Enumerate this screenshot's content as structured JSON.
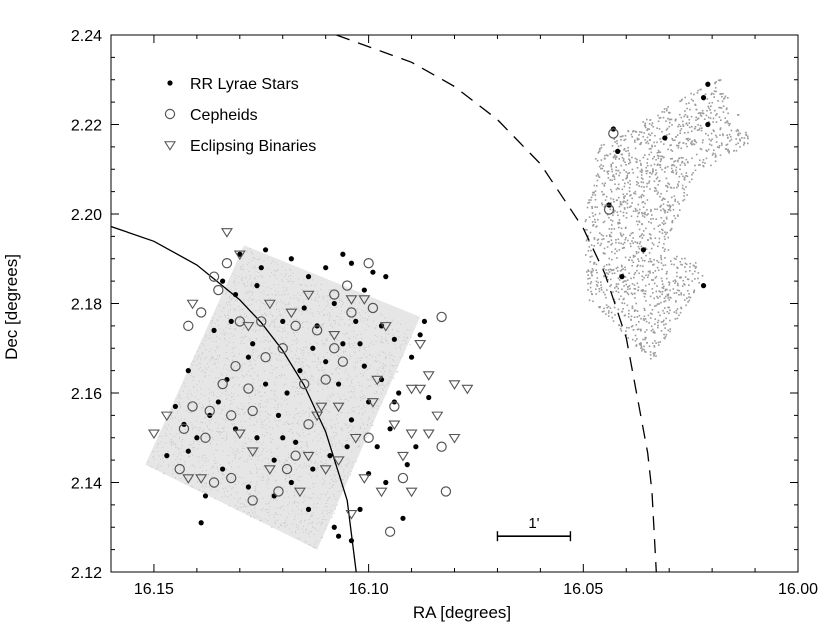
{
  "chart_data": {
    "type": "scatter",
    "title": "",
    "xlabel": "RA [degrees]",
    "ylabel": "Dec [degrees]",
    "xlim": [
      16.16,
      16.0
    ],
    "ylim": [
      2.12,
      2.24
    ],
    "x_reversed": true,
    "x_ticks": [
      "16.15",
      "16.10",
      "16.05",
      "16.00"
    ],
    "y_ticks": [
      "2.12",
      "2.14",
      "2.16",
      "2.18",
      "2.20",
      "2.22",
      "2.24"
    ],
    "legend": {
      "placement": "top-left",
      "entries": [
        "RR Lyrae Stars",
        "Cepheids",
        "Eclipsing Binaries"
      ]
    },
    "scale_bar": {
      "label": "1'",
      "x_start": 16.07,
      "x_end": 16.053,
      "y": 2.128
    },
    "colors": {
      "field": "#9a9a9a",
      "field_light": "#c8c8c8",
      "markers": "#000000",
      "open_markers": "#555555"
    },
    "fields": [
      {
        "name": "left-field",
        "shading": "light",
        "corners": [
          [
            16.152,
            2.144
          ],
          [
            16.129,
            2.193
          ],
          [
            16.088,
            2.177
          ],
          [
            16.112,
            2.125
          ]
        ]
      },
      {
        "name": "right-field",
        "shading": "dark",
        "polygon": [
          [
            16.047,
            2.215
          ],
          [
            16.018,
            2.231
          ],
          [
            16.011,
            2.216
          ],
          [
            16.024,
            2.209
          ],
          [
            16.031,
            2.193
          ],
          [
            16.021,
            2.188
          ],
          [
            16.034,
            2.167
          ],
          [
            16.049,
            2.181
          ],
          [
            16.05,
            2.197
          ]
        ]
      }
    ],
    "curves": [
      {
        "name": "solid-arc",
        "style": "solid",
        "points": [
          [
            16.16,
            2.1972
          ],
          [
            16.15,
            2.1939
          ],
          [
            16.14,
            2.1886
          ],
          [
            16.13,
            2.1808
          ],
          [
            16.125,
            2.1757
          ],
          [
            16.12,
            2.1695
          ],
          [
            16.115,
            2.1617
          ],
          [
            16.11,
            2.1513
          ],
          [
            16.105,
            2.136
          ],
          [
            16.1029,
            2.12
          ]
        ]
      },
      {
        "name": "dashed-arc",
        "style": "dashed",
        "points": [
          [
            16.1075,
            2.24
          ],
          [
            16.09,
            2.2339
          ],
          [
            16.08,
            2.2285
          ],
          [
            16.07,
            2.2211
          ],
          [
            16.06,
            2.2112
          ],
          [
            16.05,
            2.1968
          ],
          [
            16.045,
            2.1867
          ],
          [
            16.04,
            2.1723
          ],
          [
            16.035,
            2.1466
          ],
          [
            16.034,
            2.1378
          ],
          [
            16.033,
            2.12
          ]
        ]
      }
    ],
    "series": [
      {
        "name": "RR Lyrae Stars",
        "marker": "filled-circle",
        "points": [
          [
            16.147,
            2.146
          ],
          [
            16.142,
            2.147
          ],
          [
            16.138,
            2.137
          ],
          [
            16.145,
            2.157
          ],
          [
            16.142,
            2.165
          ],
          [
            16.136,
            2.174
          ],
          [
            16.134,
            2.185
          ],
          [
            16.13,
            2.191
          ],
          [
            16.124,
            2.192
          ],
          [
            16.118,
            2.19
          ],
          [
            16.114,
            2.186
          ],
          [
            16.11,
            2.188
          ],
          [
            16.104,
            2.189
          ],
          [
            16.099,
            2.187
          ],
          [
            16.096,
            2.186
          ],
          [
            16.101,
            2.183
          ],
          [
            16.108,
            2.18
          ],
          [
            16.12,
            2.176
          ],
          [
            16.127,
            2.171
          ],
          [
            16.133,
            2.163
          ],
          [
            16.137,
            2.155
          ],
          [
            16.14,
            2.15
          ],
          [
            16.131,
            2.152
          ],
          [
            16.126,
            2.15
          ],
          [
            16.122,
            2.145
          ],
          [
            16.118,
            2.14
          ],
          [
            16.114,
            2.134
          ],
          [
            16.108,
            2.13
          ],
          [
            16.102,
            2.134
          ],
          [
            16.1,
            2.142
          ],
          [
            16.098,
            2.148
          ],
          [
            16.095,
            2.152
          ],
          [
            16.093,
            2.16
          ],
          [
            16.09,
            2.168
          ],
          [
            16.094,
            2.172
          ],
          [
            16.097,
            2.163
          ],
          [
            16.1,
            2.158
          ],
          [
            16.104,
            2.154
          ],
          [
            16.107,
            2.162
          ],
          [
            16.11,
            2.167
          ],
          [
            16.113,
            2.17
          ],
          [
            16.116,
            2.165
          ],
          [
            16.119,
            2.16
          ],
          [
            16.121,
            2.155
          ],
          [
            16.124,
            2.162
          ],
          [
            16.128,
            2.168
          ],
          [
            16.132,
            2.176
          ],
          [
            16.126,
            2.184
          ],
          [
            16.115,
            2.179
          ],
          [
            16.112,
            2.175
          ],
          [
            16.106,
            2.171
          ],
          [
            16.101,
            2.166
          ],
          [
            16.097,
            2.175
          ],
          [
            16.103,
            2.176
          ],
          [
            16.109,
            2.146
          ],
          [
            16.113,
            2.143
          ],
          [
            16.117,
            2.149
          ],
          [
            16.122,
            2.137
          ],
          [
            16.128,
            2.139
          ],
          [
            16.134,
            2.143
          ],
          [
            16.139,
            2.131
          ],
          [
            16.143,
            2.153
          ],
          [
            16.135,
            2.158
          ],
          [
            16.131,
            2.182
          ],
          [
            16.125,
            2.188
          ],
          [
            16.106,
            2.191
          ],
          [
            16.096,
            2.14
          ],
          [
            16.092,
            2.132
          ],
          [
            16.107,
            2.128
          ],
          [
            16.104,
            2.127
          ],
          [
            16.086,
            2.159
          ],
          [
            16.089,
            2.148
          ],
          [
            16.091,
            2.144
          ],
          [
            16.102,
            2.171
          ],
          [
            16.087,
            2.176
          ],
          [
            16.088,
            2.173
          ],
          [
            16.12,
            2.15
          ],
          [
            16.105,
            2.148
          ],
          [
            16.094,
            2.158
          ],
          [
            16.043,
            2.219
          ],
          [
            16.021,
            2.229
          ],
          [
            16.022,
            2.226
          ],
          [
            16.021,
            2.22
          ],
          [
            16.031,
            2.217
          ],
          [
            16.042,
            2.214
          ],
          [
            16.044,
            2.202
          ],
          [
            16.036,
            2.192
          ],
          [
            16.041,
            2.186
          ],
          [
            16.022,
            2.184
          ]
        ]
      },
      {
        "name": "Cepheids",
        "marker": "open-circle",
        "points": [
          [
            16.136,
            2.186
          ],
          [
            16.133,
            2.189
          ],
          [
            16.135,
            2.183
          ],
          [
            16.139,
            2.178
          ],
          [
            16.142,
            2.175
          ],
          [
            16.13,
            2.176
          ],
          [
            16.125,
            2.176
          ],
          [
            16.12,
            2.17
          ],
          [
            16.117,
            2.175
          ],
          [
            16.112,
            2.174
          ],
          [
            16.108,
            2.17
          ],
          [
            16.105,
            2.184
          ],
          [
            16.108,
            2.182
          ],
          [
            16.104,
            2.178
          ],
          [
            16.1,
            2.189
          ],
          [
            16.099,
            2.179
          ],
          [
            16.11,
            2.163
          ],
          [
            16.115,
            2.162
          ],
          [
            16.124,
            2.168
          ],
          [
            16.131,
            2.166
          ],
          [
            16.134,
            2.162
          ],
          [
            16.128,
            2.161
          ],
          [
            16.141,
            2.157
          ],
          [
            16.137,
            2.156
          ],
          [
            16.132,
            2.155
          ],
          [
            16.127,
            2.156
          ],
          [
            16.143,
            2.152
          ],
          [
            16.138,
            2.15
          ],
          [
            16.117,
            2.146
          ],
          [
            16.119,
            2.143
          ],
          [
            16.121,
            2.138
          ],
          [
            16.127,
            2.136
          ],
          [
            16.132,
            2.141
          ],
          [
            16.136,
            2.14
          ],
          [
            16.144,
            2.143
          ],
          [
            16.114,
            2.153
          ],
          [
            16.106,
            2.167
          ],
          [
            16.094,
            2.157
          ],
          [
            16.092,
            2.141
          ],
          [
            16.083,
            2.177
          ],
          [
            16.1,
            2.15
          ],
          [
            16.095,
            2.129
          ],
          [
            16.082,
            2.138
          ],
          [
            16.083,
            2.148
          ],
          [
            16.043,
            2.218
          ],
          [
            16.044,
            2.201
          ]
        ]
      },
      {
        "name": "Eclipsing Binaries",
        "marker": "open-triangle-down",
        "points": [
          [
            16.15,
            2.151
          ],
          [
            16.147,
            2.155
          ],
          [
            16.142,
            2.141
          ],
          [
            16.139,
            2.141
          ],
          [
            16.141,
            2.18
          ],
          [
            16.128,
            2.175
          ],
          [
            16.118,
            2.178
          ],
          [
            16.114,
            2.182
          ],
          [
            16.108,
            2.173
          ],
          [
            16.104,
            2.181
          ],
          [
            16.101,
            2.181
          ],
          [
            16.096,
            2.175
          ],
          [
            16.098,
            2.163
          ],
          [
            16.099,
            2.158
          ],
          [
            16.107,
            2.157
          ],
          [
            16.112,
            2.155
          ],
          [
            16.123,
            2.143
          ],
          [
            16.127,
            2.147
          ],
          [
            16.13,
            2.151
          ],
          [
            16.116,
            2.138
          ],
          [
            16.114,
            2.146
          ],
          [
            16.107,
            2.145
          ],
          [
            16.103,
            2.15
          ],
          [
            16.094,
            2.153
          ],
          [
            16.092,
            2.146
          ],
          [
            16.097,
            2.138
          ],
          [
            16.101,
            2.141
          ],
          [
            16.104,
            2.133
          ],
          [
            16.11,
            2.143
          ],
          [
            16.088,
            2.171
          ],
          [
            16.086,
            2.164
          ],
          [
            16.084,
            2.155
          ],
          [
            16.086,
            2.151
          ],
          [
            16.08,
            2.15
          ],
          [
            16.088,
            2.161
          ],
          [
            16.133,
            2.196
          ],
          [
            16.13,
            2.191
          ],
          [
            16.123,
            2.18
          ],
          [
            16.111,
            2.157
          ],
          [
            16.09,
            2.151
          ],
          [
            16.09,
            2.138
          ],
          [
            16.09,
            2.161
          ],
          [
            16.077,
            2.161
          ],
          [
            16.08,
            2.162
          ]
        ]
      }
    ]
  }
}
